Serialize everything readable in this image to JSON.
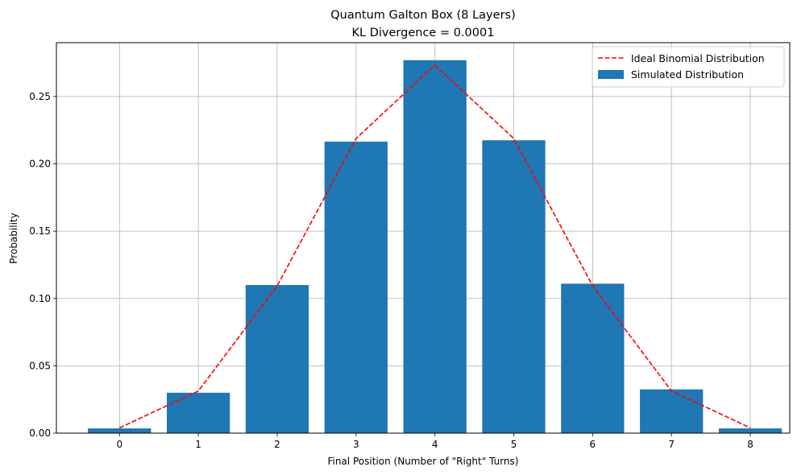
{
  "chart_data": {
    "type": "bar",
    "title": "Quantum Galton Box (8 Layers)",
    "subtitle": "KL Divergence = 0.0001",
    "xlabel": "Final Position (Number of \"Right\" Turns)",
    "ylabel": "Probability",
    "categories": [
      "0",
      "1",
      "2",
      "3",
      "4",
      "5",
      "6",
      "7",
      "8"
    ],
    "x": [
      0,
      1,
      2,
      3,
      4,
      5,
      6,
      7,
      8
    ],
    "series": [
      {
        "name": "Simulated Distribution",
        "kind": "bar",
        "color": "#1f77b4",
        "values": [
          0.0035,
          0.03,
          0.11,
          0.2165,
          0.277,
          0.2175,
          0.111,
          0.0325,
          0.0035
        ]
      },
      {
        "name": "Ideal Binomial Distribution",
        "kind": "line",
        "style": "dashed",
        "color": "#ff0000",
        "values": [
          0.0039,
          0.0313,
          0.1094,
          0.2188,
          0.2734,
          0.2188,
          0.1094,
          0.0313,
          0.0039
        ]
      }
    ],
    "xlim": [
      -0.8,
      8.5
    ],
    "ylim": [
      0,
      0.29
    ],
    "yticks": [
      0.0,
      0.05,
      0.1,
      0.15,
      0.2,
      0.25
    ],
    "ytick_labels": [
      "0.00",
      "0.05",
      "0.10",
      "0.15",
      "0.20",
      "0.25"
    ],
    "grid": true,
    "legend_position": "top-right"
  }
}
